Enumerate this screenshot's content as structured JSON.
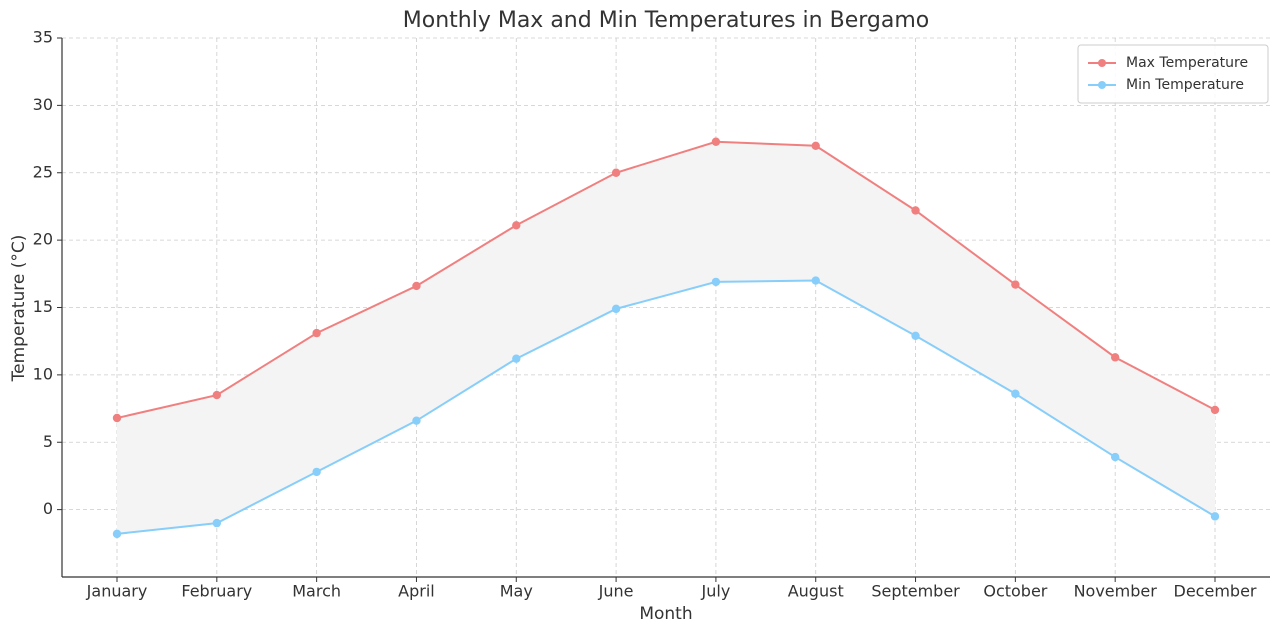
{
  "chart_data": {
    "type": "line",
    "title": "Monthly Max and Min Temperatures in Bergamo",
    "x_label": "Month",
    "y_label": "Temperature (°C)",
    "categories": [
      "January",
      "February",
      "March",
      "April",
      "May",
      "June",
      "July",
      "August",
      "September",
      "October",
      "November",
      "December"
    ],
    "series": [
      {
        "name": "Max Temperature",
        "color": "#f08080",
        "values": [
          6.8,
          8.5,
          13.1,
          16.6,
          21.1,
          25.0,
          27.3,
          27.0,
          22.2,
          16.7,
          11.3,
          7.4
        ]
      },
      {
        "name": "Min Temperature",
        "color": "#87cefa",
        "values": [
          -1.8,
          -1.0,
          2.8,
          6.6,
          11.2,
          14.9,
          16.9,
          17.0,
          12.9,
          8.6,
          3.9,
          -0.5
        ]
      }
    ],
    "fill_between": {
      "color": "#f4f4f4"
    },
    "ylim": [
      -5,
      35
    ],
    "yticks": [
      0,
      5,
      10,
      15,
      20,
      25,
      30,
      35
    ],
    "grid": true,
    "legend": "upper right"
  }
}
